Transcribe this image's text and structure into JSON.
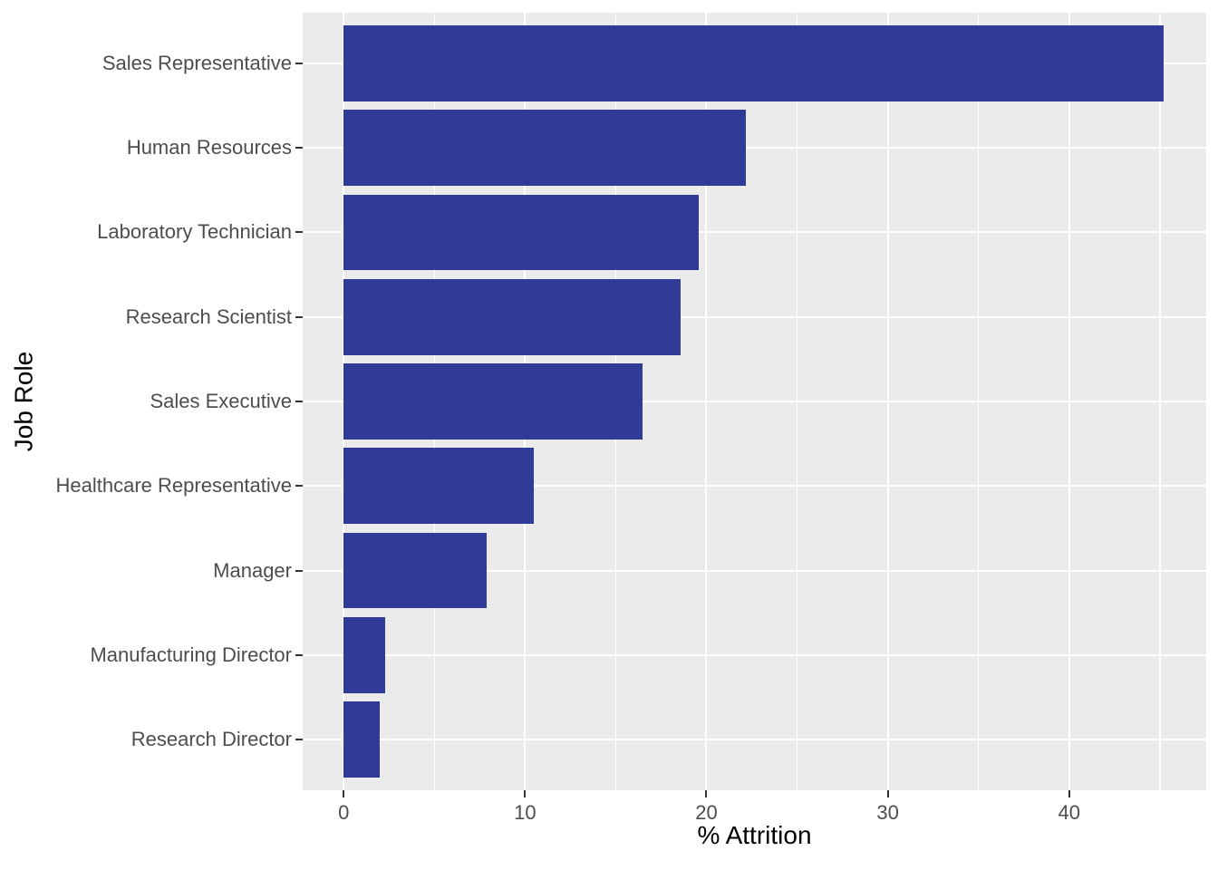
{
  "figure": {
    "background": "#FFFFFF",
    "panel_background": "#EBEBEB",
    "gridline_color": "#FFFFFF",
    "bar_color": "#2F3B96",
    "tick_mark_color": "#333333",
    "tick_label_color": "#4D4D4D",
    "axis_title_color": "#000000"
  },
  "chart_data": {
    "type": "bar",
    "orientation": "horizontal",
    "title": "",
    "xlabel": "% Attrition",
    "ylabel": "Job Role",
    "categories": [
      "Sales Representative",
      "Human Resources",
      "Laboratory Technician",
      "Research Scientist",
      "Sales Executive",
      "Healthcare Representative",
      "Manager",
      "Manufacturing Director",
      "Research Director"
    ],
    "values": [
      45.2,
      22.2,
      19.6,
      18.6,
      16.5,
      10.5,
      7.9,
      2.3,
      2.0
    ],
    "xlim": [
      -2.26,
      47.56
    ],
    "x_major_ticks": [
      0,
      10,
      20,
      30,
      40
    ],
    "x_major_tick_labels": [
      "0",
      "10",
      "20",
      "30",
      "40"
    ],
    "x_minor_ticks": [
      5,
      15,
      25,
      35,
      45
    ],
    "band_range": [
      0.4,
      9.6
    ],
    "bar_band_fraction": 0.9,
    "grid": true,
    "legend": false
  }
}
